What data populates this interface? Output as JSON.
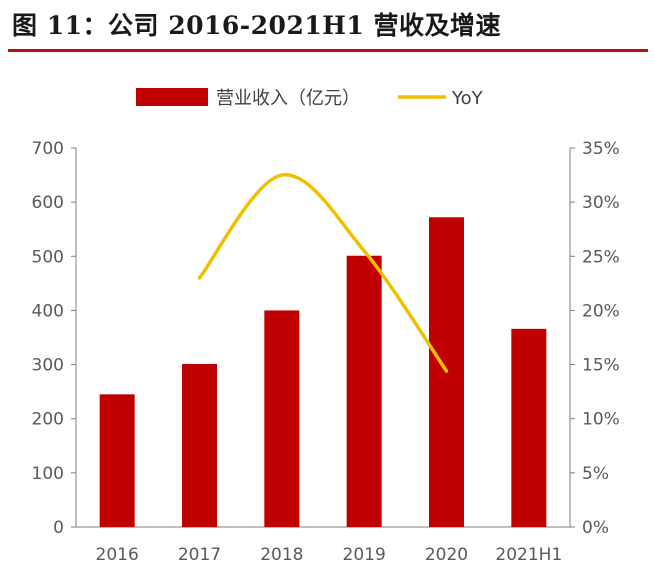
{
  "figure": {
    "title": "图 11：公司 2016-2021H1 营收及增速"
  },
  "chart_data": {
    "type": "bar",
    "categories": [
      "2016",
      "2017",
      "2018",
      "2019",
      "2020",
      "2021H1"
    ],
    "series": [
      {
        "name": "营业收入（亿元）",
        "kind": "bar",
        "axis": "left",
        "color": "#c00000",
        "values": [
          245,
          301,
          400,
          501,
          572,
          366
        ]
      },
      {
        "name": "YoY",
        "kind": "line",
        "axis": "right",
        "color": "#f0c000",
        "values": [
          null,
          23.0,
          32.5,
          25.5,
          14.4,
          null
        ]
      }
    ],
    "y_left": {
      "range": [
        0,
        700
      ],
      "ticks": [
        "0",
        "100",
        "200",
        "300",
        "400",
        "500",
        "600",
        "700"
      ]
    },
    "y_right": {
      "range": [
        0,
        35
      ],
      "ticks": [
        "0%",
        "5%",
        "10%",
        "15%",
        "20%",
        "25%",
        "30%",
        "35%"
      ]
    },
    "grid": false,
    "legend_position": "top"
  }
}
